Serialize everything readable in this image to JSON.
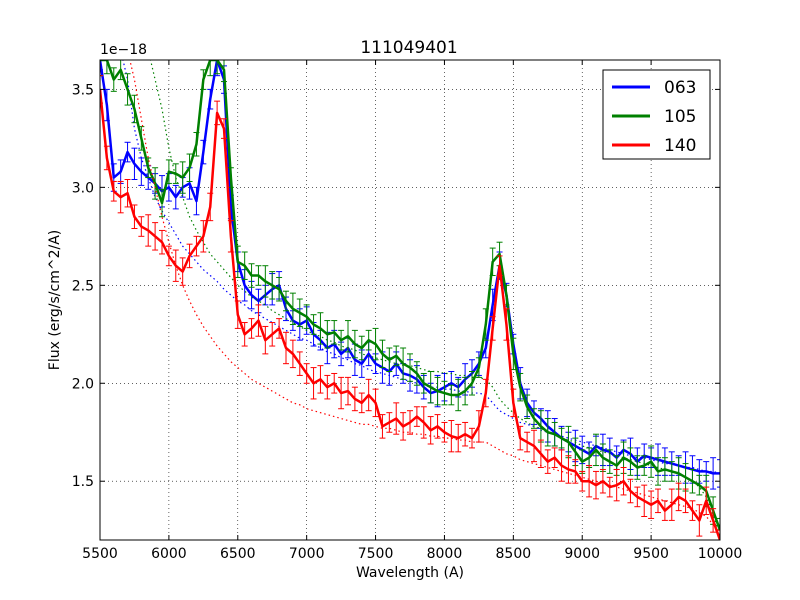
{
  "chart_data": {
    "type": "line",
    "title": "111049401",
    "xlabel": "Wavelength (A)",
    "ylabel": "Flux (erg/s/cm^2/A)",
    "offset_text": "1e−18",
    "xlim": [
      5500,
      10000
    ],
    "ylim": [
      1.2,
      3.65
    ],
    "x_ticks": [
      5500,
      6000,
      6500,
      7000,
      7500,
      8000,
      8500,
      9000,
      9500,
      10000
    ],
    "x_tick_labels": [
      "5500",
      "6000",
      "6500",
      "7000",
      "7500",
      "8000",
      "8500",
      "9000",
      "9500",
      "10000"
    ],
    "y_ticks": [
      1.5,
      2.0,
      2.5,
      3.0,
      3.5
    ],
    "y_tick_labels": [
      "1.5",
      "2.0",
      "2.5",
      "3.0",
      "3.5"
    ],
    "grid": true,
    "legend_position": "top-right",
    "x": [
      5500,
      5550,
      5600,
      5650,
      5700,
      5750,
      5800,
      5850,
      5900,
      5950,
      6000,
      6050,
      6100,
      6150,
      6200,
      6250,
      6300,
      6350,
      6400,
      6450,
      6500,
      6550,
      6600,
      6650,
      6700,
      6750,
      6800,
      6850,
      6900,
      6950,
      7000,
      7050,
      7100,
      7150,
      7200,
      7250,
      7300,
      7350,
      7400,
      7450,
      7500,
      7550,
      7600,
      7650,
      7700,
      7750,
      7800,
      7850,
      7900,
      7950,
      8000,
      8050,
      8100,
      8150,
      8200,
      8250,
      8300,
      8350,
      8400,
      8450,
      8500,
      8550,
      8600,
      8650,
      8700,
      8750,
      8800,
      8850,
      8900,
      8950,
      9000,
      9050,
      9100,
      9150,
      9200,
      9250,
      9300,
      9350,
      9400,
      9450,
      9500,
      9550,
      9600,
      9650,
      9700,
      9750,
      9800,
      9850,
      9900,
      9950,
      10000
    ],
    "series": [
      {
        "name": "063",
        "color": "#0000ff",
        "values": [
          3.65,
          3.42,
          3.05,
          3.08,
          3.18,
          3.12,
          3.08,
          3.05,
          3.02,
          2.98,
          3.0,
          2.95,
          3.0,
          3.02,
          2.93,
          3.18,
          3.45,
          3.65,
          3.55,
          2.9,
          2.62,
          2.5,
          2.45,
          2.42,
          2.45,
          2.48,
          2.5,
          2.38,
          2.32,
          2.3,
          2.32,
          2.25,
          2.22,
          2.18,
          2.2,
          2.15,
          2.18,
          2.12,
          2.1,
          2.15,
          2.1,
          2.08,
          2.06,
          2.1,
          2.05,
          2.04,
          2.02,
          1.98,
          1.95,
          1.96,
          1.98,
          2.0,
          1.98,
          2.02,
          2.05,
          2.1,
          2.18,
          2.4,
          2.6,
          2.45,
          2.2,
          2.0,
          1.9,
          1.85,
          1.82,
          1.78,
          1.75,
          1.72,
          1.7,
          1.68,
          1.66,
          1.64,
          1.68,
          1.66,
          1.65,
          1.62,
          1.66,
          1.64,
          1.6,
          1.63,
          1.62,
          1.61,
          1.6,
          1.59,
          1.58,
          1.57,
          1.56,
          1.55,
          1.55,
          1.54,
          1.54
        ],
        "continuum": [
          3.9,
          3.85,
          3.8,
          3.7,
          3.55,
          3.3,
          3.15,
          3.05,
          2.95,
          2.88,
          2.82,
          2.76,
          2.7,
          2.66,
          2.62,
          2.58,
          2.55,
          2.52,
          2.48,
          2.45,
          2.42,
          2.4,
          2.37,
          2.35,
          2.33,
          2.31,
          2.29,
          2.27,
          2.25,
          2.23,
          2.22,
          2.2,
          2.18,
          2.16,
          2.15,
          2.13,
          2.12,
          2.1,
          2.09,
          2.07,
          2.06,
          2.05,
          2.04,
          2.03,
          2.02,
          2.01,
          2.0,
          1.99,
          1.98,
          1.98,
          1.97,
          1.97,
          1.96,
          1.96,
          1.95,
          1.95,
          1.94,
          1.9,
          1.86,
          1.84,
          1.82,
          1.8,
          1.79,
          1.78,
          1.76,
          1.75,
          1.74,
          1.73,
          1.72,
          1.71,
          1.7,
          1.69,
          1.68,
          1.67,
          1.66,
          1.65,
          1.64,
          1.63,
          1.62,
          1.62,
          1.61,
          1.6,
          1.59,
          1.59,
          1.58,
          1.57,
          1.57,
          1.56,
          1.55,
          1.55,
          1.54
        ]
      },
      {
        "name": "105",
        "color": "#008000",
        "values": [
          3.65,
          3.65,
          3.55,
          3.6,
          3.5,
          3.4,
          3.25,
          3.1,
          3.02,
          2.92,
          3.08,
          3.07,
          3.05,
          3.1,
          3.22,
          3.55,
          3.65,
          3.65,
          3.6,
          3.05,
          2.62,
          2.6,
          2.55,
          2.55,
          2.52,
          2.5,
          2.48,
          2.42,
          2.38,
          2.36,
          2.34,
          2.3,
          2.28,
          2.25,
          2.26,
          2.22,
          2.24,
          2.2,
          2.18,
          2.22,
          2.2,
          2.15,
          2.12,
          2.14,
          2.1,
          2.08,
          2.05,
          2.0,
          1.98,
          1.96,
          1.95,
          1.94,
          1.94,
          1.96,
          2.0,
          2.08,
          2.3,
          2.62,
          2.66,
          2.45,
          2.15,
          1.98,
          1.88,
          1.82,
          1.78,
          1.75,
          1.74,
          1.72,
          1.7,
          1.65,
          1.6,
          1.62,
          1.66,
          1.62,
          1.6,
          1.58,
          1.62,
          1.6,
          1.57,
          1.58,
          1.6,
          1.55,
          1.56,
          1.55,
          1.54,
          1.52,
          1.5,
          1.48,
          1.45,
          1.35,
          1.25
        ],
        "continuum": [
          3.9,
          3.9,
          3.88,
          3.86,
          3.84,
          3.82,
          3.8,
          3.7,
          3.55,
          3.4,
          3.2,
          3.05,
          2.95,
          2.85,
          2.78,
          2.72,
          2.66,
          2.62,
          2.58,
          2.54,
          2.5,
          2.47,
          2.44,
          2.42,
          2.4,
          2.37,
          2.35,
          2.33,
          2.31,
          2.29,
          2.27,
          2.25,
          2.24,
          2.22,
          2.21,
          2.19,
          2.18,
          2.17,
          2.15,
          2.14,
          2.13,
          2.12,
          2.11,
          2.1,
          2.09,
          2.09,
          2.08,
          2.07,
          2.06,
          2.06,
          2.05,
          2.05,
          2.04,
          2.04,
          2.03,
          2.03,
          2.02,
          1.98,
          1.92,
          1.88,
          1.85,
          1.82,
          1.8,
          1.78,
          1.77,
          1.75,
          1.74,
          1.72,
          1.71,
          1.7,
          1.68,
          1.67,
          1.66,
          1.65,
          1.64,
          1.63,
          1.62,
          1.61,
          1.6,
          1.59,
          1.58,
          1.57,
          1.56,
          1.55,
          1.54,
          1.52,
          1.5,
          1.47,
          1.42,
          1.33,
          1.22
        ]
      },
      {
        "name": "140",
        "color": "#ff0000",
        "values": [
          3.5,
          3.15,
          2.98,
          2.95,
          2.97,
          2.85,
          2.8,
          2.78,
          2.75,
          2.72,
          2.65,
          2.6,
          2.57,
          2.65,
          2.7,
          2.75,
          2.9,
          3.38,
          3.3,
          2.75,
          2.35,
          2.25,
          2.28,
          2.32,
          2.22,
          2.25,
          2.28,
          2.18,
          2.15,
          2.1,
          2.05,
          2.0,
          2.02,
          1.98,
          2.0,
          1.95,
          1.96,
          1.92,
          1.9,
          1.94,
          1.9,
          1.78,
          1.8,
          1.82,
          1.78,
          1.8,
          1.83,
          1.8,
          1.76,
          1.78,
          1.75,
          1.73,
          1.72,
          1.74,
          1.72,
          1.78,
          1.95,
          2.28,
          2.6,
          2.3,
          1.9,
          1.72,
          1.7,
          1.68,
          1.64,
          1.6,
          1.62,
          1.58,
          1.56,
          1.55,
          1.5,
          1.5,
          1.48,
          1.5,
          1.47,
          1.48,
          1.5,
          1.45,
          1.42,
          1.4,
          1.38,
          1.4,
          1.35,
          1.38,
          1.42,
          1.4,
          1.35,
          1.3,
          1.4,
          1.3,
          1.2
        ],
        "continuum": [
          3.9,
          3.88,
          3.85,
          3.8,
          3.7,
          3.55,
          3.35,
          3.15,
          3.0,
          2.85,
          2.72,
          2.6,
          2.5,
          2.42,
          2.35,
          2.29,
          2.24,
          2.19,
          2.15,
          2.11,
          2.08,
          2.05,
          2.02,
          2.0,
          1.98,
          1.96,
          1.94,
          1.92,
          1.9,
          1.89,
          1.87,
          1.86,
          1.85,
          1.84,
          1.83,
          1.82,
          1.81,
          1.8,
          1.79,
          1.79,
          1.78,
          1.77,
          1.77,
          1.76,
          1.75,
          1.75,
          1.74,
          1.74,
          1.73,
          1.73,
          1.72,
          1.72,
          1.71,
          1.71,
          1.7,
          1.7,
          1.7,
          1.68,
          1.66,
          1.64,
          1.63,
          1.61,
          1.6,
          1.59,
          1.58,
          1.57,
          1.56,
          1.55,
          1.54,
          1.53,
          1.52,
          1.51,
          1.5,
          1.49,
          1.48,
          1.47,
          1.46,
          1.45,
          1.44,
          1.43,
          1.42,
          1.41,
          1.4,
          1.39,
          1.38,
          1.37,
          1.36,
          1.34,
          1.32,
          1.28,
          1.22
        ]
      }
    ]
  }
}
